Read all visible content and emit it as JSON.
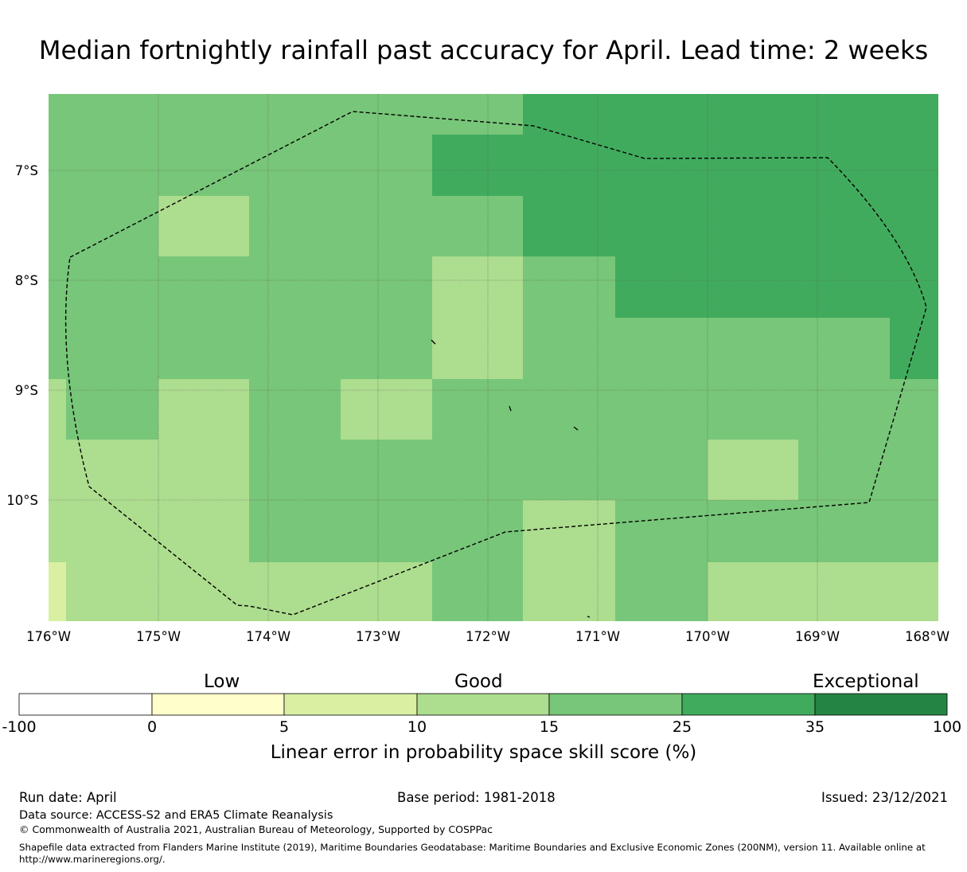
{
  "title": "Median fortnightly rainfall past accuracy for April. Lead time: 2 weeks",
  "map": {
    "lon_range": [
      -176,
      -167.9
    ],
    "lat_range": [
      -11.1,
      -6.3
    ],
    "x_ticks": [
      "176°W",
      "175°W",
      "174°W",
      "173°W",
      "172°W",
      "171°W",
      "170°W",
      "169°W",
      "168°W"
    ],
    "y_ticks": [
      "7°S",
      "8°S",
      "9°S",
      "10°S"
    ],
    "colors": {
      "c1": "#d9f0a3",
      "c2": "#addd8e",
      "c3": "#78c679",
      "c4": "#41ab5d",
      "grid": "#555555",
      "boundary": "#000000"
    }
  },
  "colorbar": {
    "categories": {
      "low": "Low",
      "good": "Good",
      "exceptional": "Exceptional"
    },
    "ticks": [
      "-100",
      "0",
      "5",
      "10",
      "15",
      "25",
      "35",
      "100"
    ],
    "colors": [
      "#ffffff",
      "#ffffcc",
      "#d9f0a3",
      "#addd8e",
      "#78c679",
      "#41ab5d",
      "#238443"
    ],
    "label": "Linear error in probability space skill score (%)"
  },
  "footer": {
    "run_date": "Run date: April",
    "base_period": "Base period: 1981-2018",
    "issued": "Issued: 23/12/2021",
    "data_source": "Data source: ACCESS-S2 and ERA5 Climate Reanalysis",
    "copyright": "© Commonwealth of Australia 2021, Australian Bureau of Meteorology, Supported by COSPPac",
    "shapefile_line1": "Shapefile data extracted from Flanders Marine Institute (2019), Maritime Boundaries Geodatabase: Maritime Boundaries and Exclusive Economic Zones (200NM), version 11. Available online at",
    "shapefile_line2": "http://www.marineregions.org/."
  }
}
